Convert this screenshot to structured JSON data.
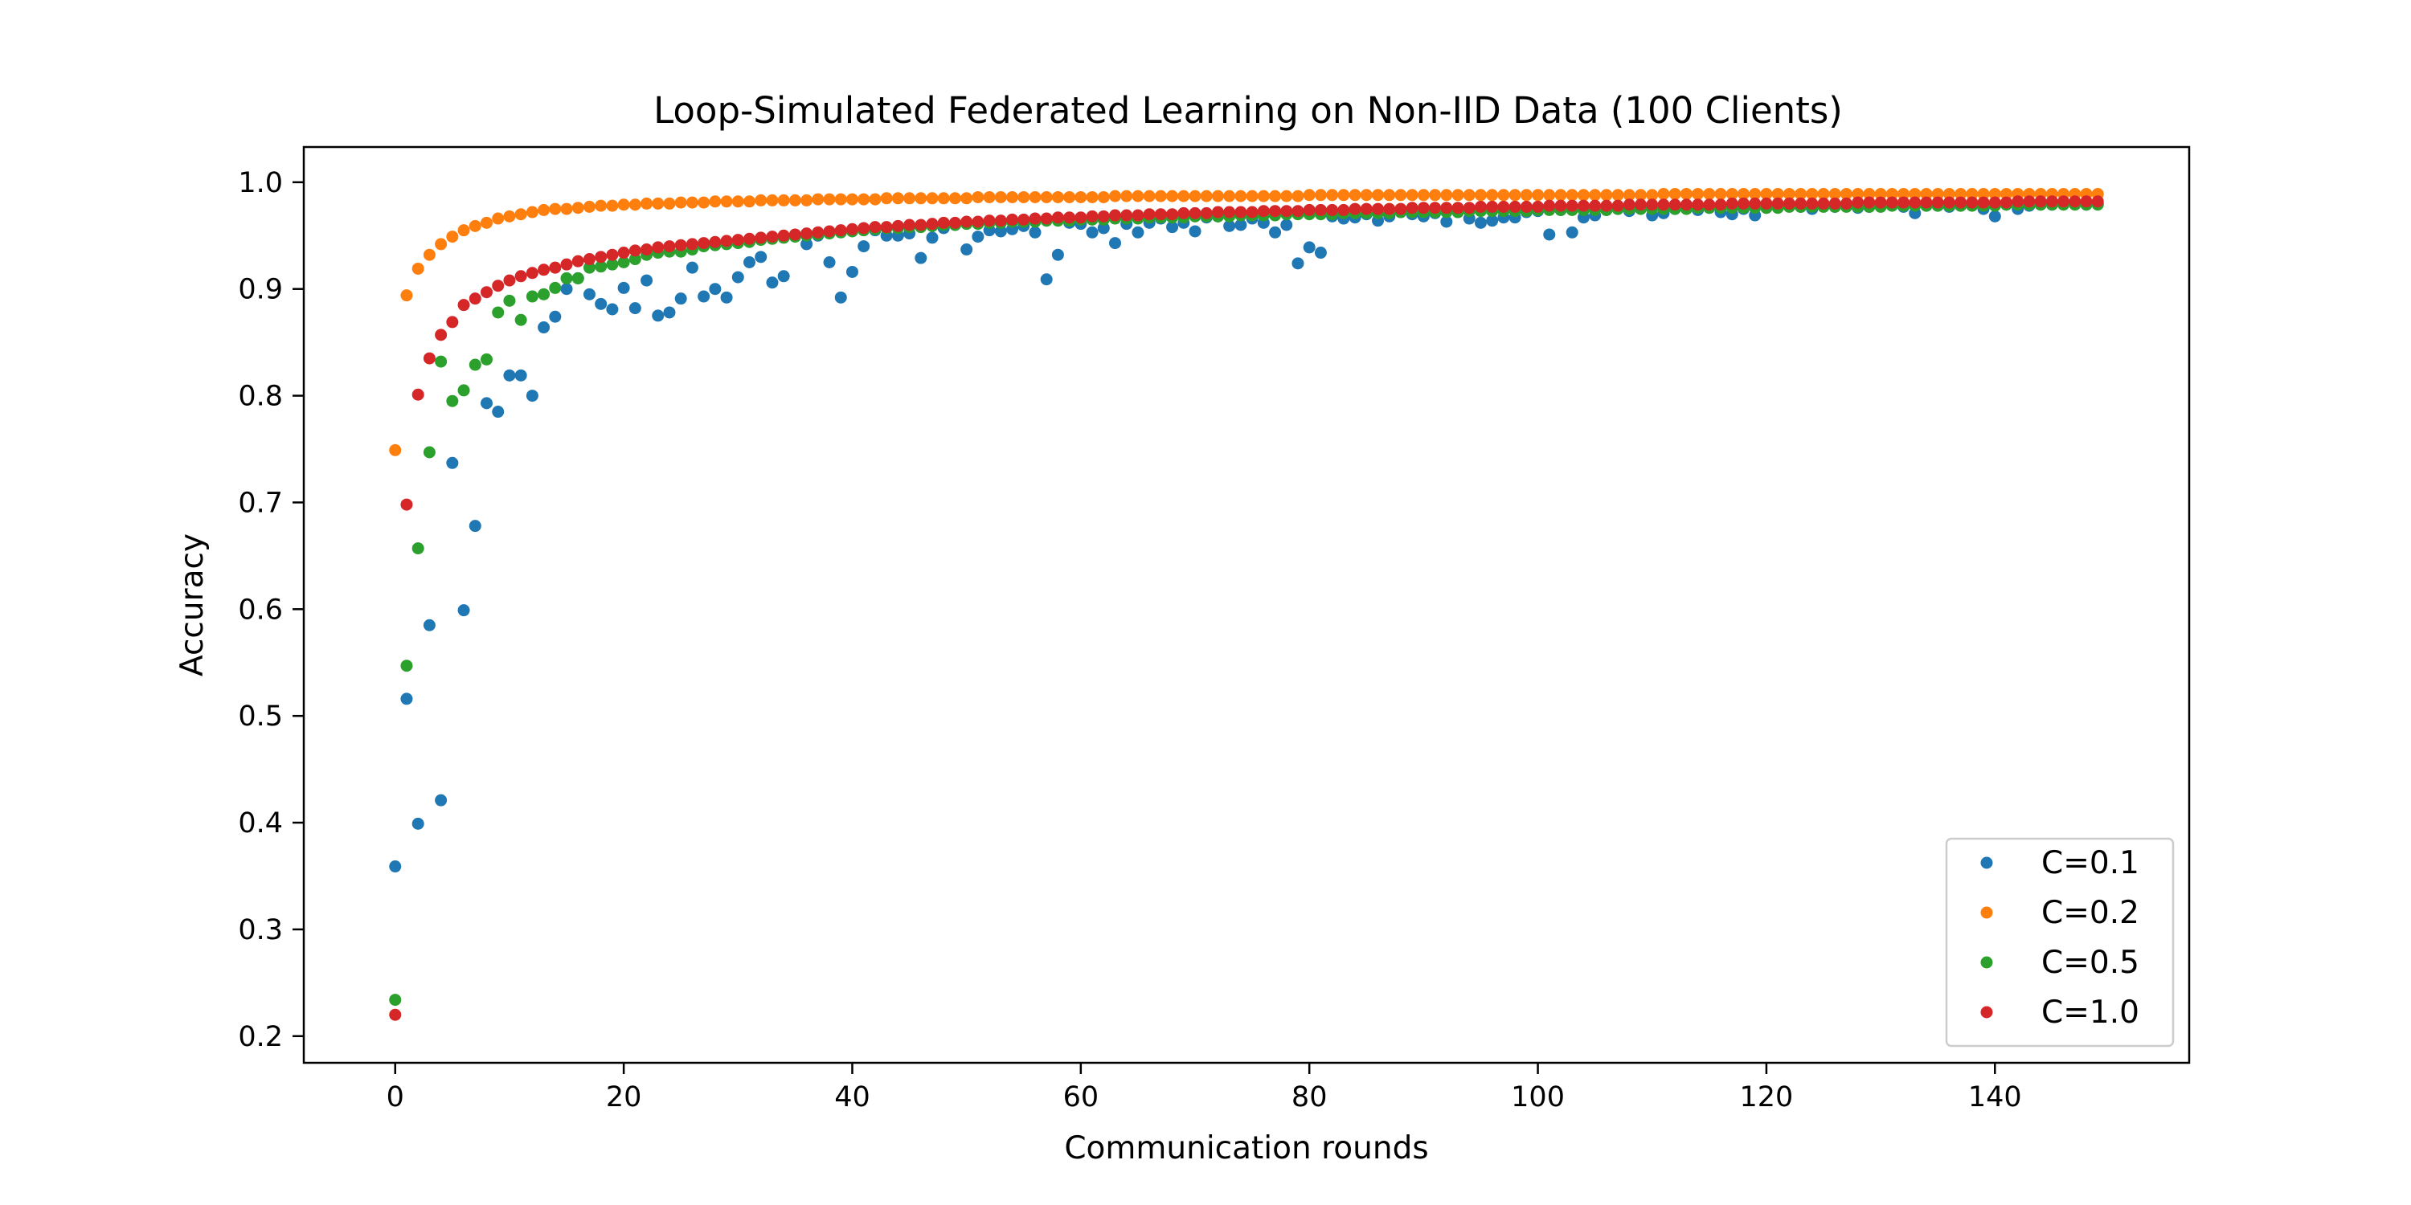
{
  "chart_data": {
    "type": "scatter",
    "title": "Loop-Simulated Federated Learning on Non-IID Data (100 Clients)",
    "xlabel": "Communication rounds",
    "ylabel": "Accuracy",
    "xlim": [
      -8,
      157
    ],
    "ylim": [
      0.175,
      1.033
    ],
    "x_ticks": [
      0,
      20,
      40,
      60,
      80,
      100,
      120,
      140
    ],
    "y_ticks": [
      0.2,
      0.3,
      0.4,
      0.5,
      0.6,
      0.7,
      0.8,
      0.9,
      1.0
    ],
    "x_tick_labels": [
      "0",
      "20",
      "40",
      "60",
      "80",
      "100",
      "120",
      "140"
    ],
    "y_tick_labels": [
      "0.2",
      "0.3",
      "0.4",
      "0.5",
      "0.6",
      "0.7",
      "0.8",
      "0.9",
      "1.0"
    ],
    "grid": false,
    "legend_position": "lower right",
    "rounds": 150,
    "series": [
      {
        "name": "C=0.1",
        "color": "#1f77b4",
        "values": [
          0.359,
          0.516,
          0.399,
          0.585,
          0.421,
          0.737,
          0.599,
          0.678,
          0.793,
          0.785,
          0.819,
          0.819,
          0.8,
          0.864,
          0.874,
          0.9,
          0.91,
          0.895,
          0.886,
          0.881,
          0.901,
          0.882,
          0.908,
          0.875,
          0.878,
          0.891,
          0.92,
          0.893,
          0.9,
          0.892,
          0.911,
          0.925,
          0.93,
          0.906,
          0.912,
          0.95,
          0.942,
          0.95,
          0.925,
          0.892,
          0.916,
          0.94,
          0.955,
          0.95,
          0.95,
          0.952,
          0.929,
          0.948,
          0.957,
          0.96,
          0.937,
          0.949,
          0.955,
          0.954,
          0.956,
          0.959,
          0.953,
          0.909,
          0.932,
          0.962,
          0.961,
          0.953,
          0.957,
          0.943,
          0.961,
          0.953,
          0.962,
          0.966,
          0.958,
          0.962,
          0.954,
          0.967,
          0.968,
          0.959,
          0.96,
          0.966,
          0.962,
          0.953,
          0.96,
          0.924,
          0.939,
          0.934,
          0.968,
          0.966,
          0.967,
          0.97,
          0.964,
          0.968,
          0.972,
          0.97,
          0.968,
          0.971,
          0.963,
          0.972,
          0.966,
          0.962,
          0.964,
          0.967,
          0.967,
          0.972,
          0.973,
          0.951,
          0.974,
          0.953,
          0.967,
          0.969,
          0.974,
          0.975,
          0.973,
          0.976,
          0.969,
          0.971,
          0.975,
          0.976,
          0.974,
          0.976,
          0.972,
          0.97,
          0.975,
          0.969,
          0.976,
          0.977,
          0.978,
          0.977,
          0.975,
          0.978,
          0.977,
          0.978,
          0.976,
          0.977,
          0.978,
          0.979,
          0.977,
          0.971,
          0.978,
          0.978,
          0.977,
          0.978,
          0.979,
          0.975,
          0.968,
          0.979,
          0.975,
          0.978,
          0.979,
          0.979,
          0.98,
          0.98,
          0.979,
          0.98
        ]
      },
      {
        "name": "C=0.2",
        "color": "#ff7f0e",
        "values": [
          0.749,
          0.894,
          0.919,
          0.932,
          0.942,
          0.949,
          0.955,
          0.959,
          0.962,
          0.966,
          0.968,
          0.97,
          0.972,
          0.974,
          0.975,
          0.975,
          0.976,
          0.977,
          0.978,
          0.978,
          0.979,
          0.979,
          0.98,
          0.98,
          0.98,
          0.981,
          0.981,
          0.981,
          0.982,
          0.982,
          0.982,
          0.982,
          0.983,
          0.983,
          0.983,
          0.983,
          0.983,
          0.984,
          0.984,
          0.984,
          0.984,
          0.984,
          0.984,
          0.985,
          0.985,
          0.985,
          0.985,
          0.985,
          0.985,
          0.985,
          0.985,
          0.986,
          0.986,
          0.986,
          0.986,
          0.986,
          0.986,
          0.986,
          0.986,
          0.986,
          0.986,
          0.986,
          0.986,
          0.987,
          0.987,
          0.987,
          0.987,
          0.987,
          0.987,
          0.987,
          0.987,
          0.987,
          0.987,
          0.987,
          0.987,
          0.987,
          0.987,
          0.987,
          0.987,
          0.987,
          0.988,
          0.988,
          0.988,
          0.988,
          0.988,
          0.988,
          0.988,
          0.988,
          0.988,
          0.988,
          0.988,
          0.988,
          0.988,
          0.988,
          0.988,
          0.988,
          0.988,
          0.988,
          0.988,
          0.988,
          0.988,
          0.988,
          0.988,
          0.988,
          0.988,
          0.988,
          0.988,
          0.988,
          0.988,
          0.988,
          0.988,
          0.989,
          0.989,
          0.989,
          0.989,
          0.989,
          0.989,
          0.989,
          0.989,
          0.989,
          0.989,
          0.989,
          0.989,
          0.989,
          0.989,
          0.989,
          0.989,
          0.989,
          0.989,
          0.989,
          0.989,
          0.989,
          0.989,
          0.989,
          0.989,
          0.989,
          0.989,
          0.989,
          0.989,
          0.989,
          0.989,
          0.989,
          0.989,
          0.989,
          0.989,
          0.989,
          0.989,
          0.989,
          0.989,
          0.989
        ]
      },
      {
        "name": "C=0.5",
        "color": "#2ca02c",
        "values": [
          0.234,
          0.547,
          0.657,
          0.747,
          0.832,
          0.795,
          0.805,
          0.829,
          0.834,
          0.878,
          0.889,
          0.871,
          0.893,
          0.895,
          0.901,
          0.91,
          0.91,
          0.92,
          0.921,
          0.923,
          0.925,
          0.928,
          0.932,
          0.934,
          0.935,
          0.935,
          0.937,
          0.94,
          0.941,
          0.942,
          0.943,
          0.944,
          0.946,
          0.947,
          0.948,
          0.949,
          0.95,
          0.951,
          0.952,
          0.953,
          0.954,
          0.955,
          0.956,
          0.957,
          0.957,
          0.958,
          0.958,
          0.959,
          0.96,
          0.96,
          0.961,
          0.961,
          0.962,
          0.962,
          0.963,
          0.963,
          0.963,
          0.964,
          0.964,
          0.964,
          0.965,
          0.965,
          0.965,
          0.966,
          0.966,
          0.966,
          0.967,
          0.967,
          0.967,
          0.967,
          0.968,
          0.968,
          0.968,
          0.968,
          0.969,
          0.969,
          0.969,
          0.969,
          0.97,
          0.97,
          0.97,
          0.97,
          0.97,
          0.971,
          0.971,
          0.971,
          0.971,
          0.971,
          0.972,
          0.972,
          0.972,
          0.972,
          0.972,
          0.972,
          0.973,
          0.973,
          0.973,
          0.973,
          0.973,
          0.973,
          0.974,
          0.974,
          0.974,
          0.974,
          0.974,
          0.974,
          0.974,
          0.975,
          0.975,
          0.975,
          0.975,
          0.975,
          0.975,
          0.975,
          0.976,
          0.976,
          0.976,
          0.976,
          0.976,
          0.976,
          0.976,
          0.976,
          0.977,
          0.977,
          0.977,
          0.977,
          0.977,
          0.977,
          0.977,
          0.977,
          0.977,
          0.978,
          0.978,
          0.978,
          0.978,
          0.978,
          0.978,
          0.978,
          0.978,
          0.978,
          0.978,
          0.979,
          0.979,
          0.979,
          0.979,
          0.979,
          0.979,
          0.979,
          0.979,
          0.979
        ]
      },
      {
        "name": "C=1.0",
        "color": "#d62728",
        "values": [
          0.22,
          0.698,
          0.801,
          0.835,
          0.857,
          0.869,
          0.885,
          0.891,
          0.897,
          0.903,
          0.908,
          0.912,
          0.915,
          0.918,
          0.92,
          0.923,
          0.926,
          0.928,
          0.93,
          0.932,
          0.934,
          0.936,
          0.937,
          0.939,
          0.94,
          0.941,
          0.942,
          0.943,
          0.944,
          0.945,
          0.946,
          0.947,
          0.948,
          0.949,
          0.95,
          0.951,
          0.952,
          0.953,
          0.954,
          0.955,
          0.956,
          0.957,
          0.958,
          0.958,
          0.959,
          0.96,
          0.96,
          0.961,
          0.962,
          0.962,
          0.963,
          0.963,
          0.964,
          0.964,
          0.965,
          0.965,
          0.966,
          0.966,
          0.967,
          0.967,
          0.967,
          0.968,
          0.968,
          0.969,
          0.969,
          0.969,
          0.97,
          0.97,
          0.97,
          0.971,
          0.971,
          0.971,
          0.972,
          0.972,
          0.972,
          0.972,
          0.973,
          0.973,
          0.973,
          0.973,
          0.974,
          0.974,
          0.974,
          0.974,
          0.975,
          0.975,
          0.975,
          0.975,
          0.975,
          0.976,
          0.976,
          0.976,
          0.976,
          0.976,
          0.976,
          0.977,
          0.977,
          0.977,
          0.977,
          0.977,
          0.977,
          0.978,
          0.978,
          0.978,
          0.978,
          0.978,
          0.978,
          0.978,
          0.979,
          0.979,
          0.979,
          0.979,
          0.979,
          0.979,
          0.979,
          0.979,
          0.979,
          0.98,
          0.98,
          0.98,
          0.98,
          0.98,
          0.98,
          0.98,
          0.98,
          0.98,
          0.98,
          0.98,
          0.981,
          0.981,
          0.981,
          0.981,
          0.981,
          0.981,
          0.981,
          0.981,
          0.981,
          0.981,
          0.981,
          0.981,
          0.981,
          0.981,
          0.982,
          0.982,
          0.982,
          0.982,
          0.982,
          0.982,
          0.982,
          0.982
        ]
      }
    ]
  }
}
